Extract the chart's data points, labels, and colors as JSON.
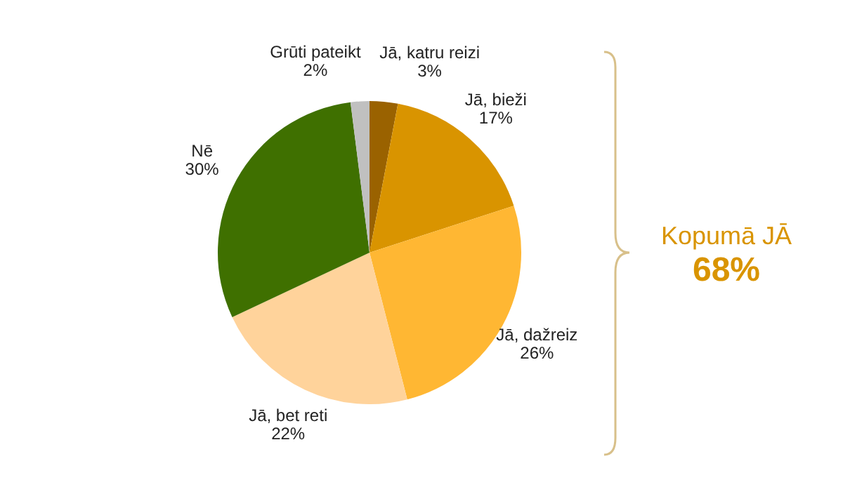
{
  "chart_data": {
    "type": "pie",
    "categories": [
      "Jā, katru reizi",
      "Jā, bieži",
      "Jā, dažreiz",
      "Jā, bet reti",
      "Nē",
      "Grūti pateikt"
    ],
    "values": [
      3,
      17,
      26,
      22,
      30,
      2
    ],
    "colors": [
      "#9a6200",
      "#d99400",
      "#ffb733",
      "#ffd39b",
      "#3f7000",
      "#c0c0c0"
    ],
    "value_labels": [
      "3%",
      "17%",
      "26%",
      "22%",
      "30%",
      "2%"
    ],
    "legend": false,
    "annotations": [
      "Kopumā JĀ",
      "68%"
    ]
  }
}
